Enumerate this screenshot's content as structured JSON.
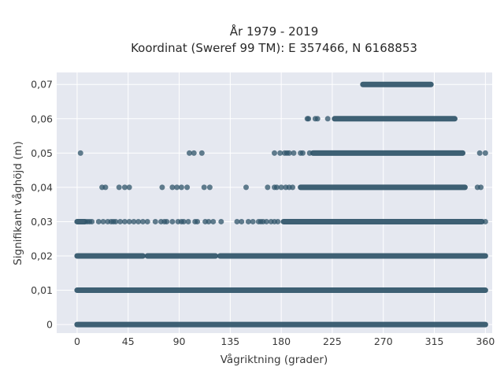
{
  "chart_data": {
    "type": "scatter",
    "title": "År 1979 - 2019",
    "subtitle": "Koordinat (Sweref 99 TM): E 357466, N 6168853",
    "xlabel": "Vågriktning (grader)",
    "ylabel": "Signifikant våghöjd (m)",
    "xlim": [
      -18,
      366
    ],
    "ylim": [
      -0.0025,
      0.0735
    ],
    "x_ticks": [
      0,
      45,
      90,
      135,
      180,
      225,
      270,
      315,
      360
    ],
    "x_tick_labels": [
      "0",
      "45",
      "90",
      "135",
      "180",
      "225",
      "270",
      "315",
      "360"
    ],
    "y_ticks": [
      0,
      0.01,
      0.02,
      0.03,
      0.04,
      0.05,
      0.06,
      0.07
    ],
    "y_tick_labels": [
      "0",
      "0,01",
      "0,02",
      "0,03",
      "0,04",
      "0,05",
      "0,06",
      "0,07"
    ],
    "grid": true,
    "marker_color": "#2f5469",
    "background": "#e5e8f0",
    "series": [
      {
        "y": 0.07,
        "segments": [
          [
            252,
            312
          ]
        ],
        "points": []
      },
      {
        "y": 0.06,
        "segments": [
          [
            227,
            333
          ]
        ],
        "points": [
          203,
          204,
          210,
          212,
          221
        ]
      },
      {
        "y": 0.05,
        "segments": [
          [
            208,
            340
          ]
        ],
        "points": [
          3,
          99,
          103,
          110,
          174,
          179,
          183,
          185,
          187,
          191,
          197,
          199,
          205,
          355,
          360
        ]
      },
      {
        "y": 0.04,
        "segments": [
          [
            197,
            342
          ]
        ],
        "points": [
          22,
          25,
          37,
          42,
          46,
          75,
          84,
          88,
          92,
          97,
          112,
          117,
          149,
          168,
          174,
          176,
          180,
          184,
          187,
          190,
          353,
          356
        ]
      },
      {
        "y": 0.03,
        "segments": [
          [
            0,
            7
          ],
          [
            182,
            357
          ]
        ],
        "points": [
          9,
          11,
          13,
          19,
          23,
          27,
          30,
          32,
          34,
          38,
          42,
          46,
          50,
          54,
          58,
          62,
          69,
          74,
          77,
          79,
          84,
          89,
          92,
          94,
          98,
          104,
          106,
          113,
          116,
          120,
          127,
          141,
          145,
          151,
          155,
          160,
          162,
          164,
          167,
          171,
          174,
          177,
          360
        ]
      },
      {
        "y": 0.02,
        "segments": [
          [
            0,
            58
          ],
          [
            62,
            122
          ],
          [
            126,
            360
          ]
        ],
        "points": []
      },
      {
        "y": 0.01,
        "segments": [
          [
            0,
            360
          ]
        ],
        "points": []
      },
      {
        "y": 0.0,
        "segments": [
          [
            0,
            360
          ]
        ],
        "points": []
      }
    ]
  }
}
